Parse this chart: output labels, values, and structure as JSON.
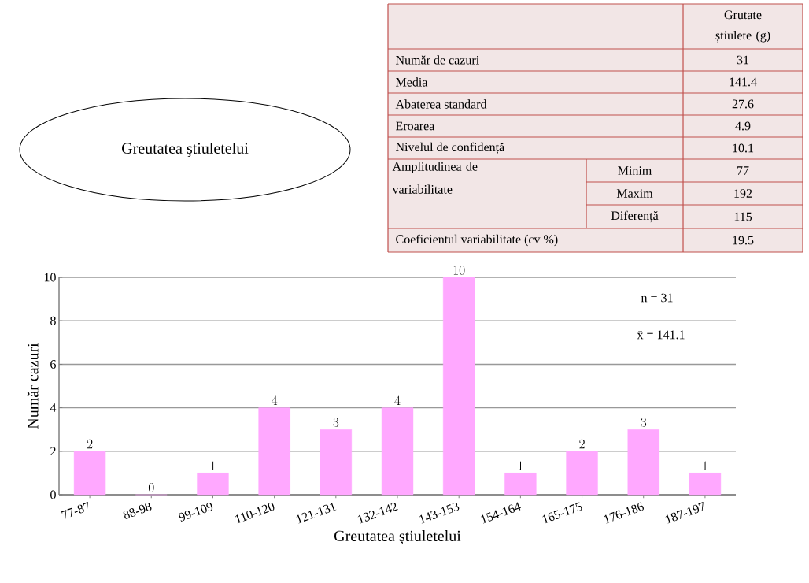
{
  "chart_data": [
    {
      "type": "other",
      "annotations": [
        "Grutate știulete (g)",
        "Număr de cazuri",
        "31",
        "Media",
        "141.4",
        "Abaterea standard",
        "27.6",
        "Eroarea",
        "4.9",
        "Nivelul de confidență",
        "10.1",
        "Amplitudinea de variabilitate",
        "Minim",
        "77",
        "Maxim",
        "192",
        "Diferență",
        "115",
        "Coeficientul variabilitate (cv %)",
        "19.5"
      ]
    },
    {
      "type": "bar",
      "title": "Greutatea ştiuletelui",
      "xlabel": "Greutatea știuletelui",
      "ylabel": "Număr cazuri",
      "categories": [
        "77-87",
        "88-98",
        "99-109",
        "110-120",
        "121-131",
        "132-142",
        "143-153",
        "154-164",
        "165-175",
        "176-186",
        "187-197"
      ],
      "values": [
        2,
        0,
        1,
        4,
        3,
        4,
        10,
        1,
        2,
        3,
        1
      ],
      "color": "#ffa8ff",
      "ylim": [
        0,
        10
      ],
      "yticks": [
        0,
        2,
        4,
        6,
        8,
        10
      ],
      "grid": "y",
      "data_labels": true,
      "annotations": [
        "n  = 31",
        "x̄ = 141.1"
      ]
    }
  ]
}
